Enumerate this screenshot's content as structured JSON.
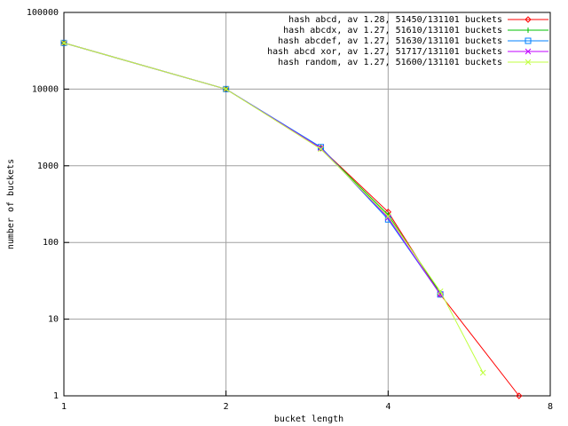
{
  "chart_data": {
    "type": "line",
    "xlabel": "bucket length",
    "ylabel": "number of buckets",
    "xlog": true,
    "ylog": true,
    "grid": true,
    "xlim": [
      1,
      8
    ],
    "ylim": [
      1,
      100000
    ],
    "xticks": [
      1,
      2,
      4,
      8
    ],
    "yticks": [
      1,
      10,
      100,
      1000,
      10000,
      100000
    ],
    "legend": "top-right",
    "series": [
      {
        "name": "hash abcd, av 1.28, 51450/131101 buckets",
        "color": "#ff0000",
        "marker": "diamond",
        "x": [
          1,
          2,
          3,
          4,
          5,
          7
        ],
        "values": [
          40000,
          10000,
          1700,
          250,
          21,
          1
        ]
      },
      {
        "name": "hash abcdx, av 1.27, 51610/131101 buckets",
        "color": "#00c000",
        "marker": "plus",
        "x": [
          1,
          2,
          3,
          4,
          5
        ],
        "values": [
          40000,
          10000,
          1700,
          230,
          22
        ]
      },
      {
        "name": "hash abcdef, av 1.27, 51630/131101 buckets",
        "color": "#0080ff",
        "marker": "square",
        "x": [
          1,
          2,
          3,
          4,
          5
        ],
        "values": [
          40000,
          10000,
          1750,
          200,
          21
        ]
      },
      {
        "name": "hash abcd xor, av 1.27, 51717/131101 buckets",
        "color": "#c000ff",
        "marker": "cross",
        "x": [
          1,
          2,
          3,
          4,
          5
        ],
        "values": [
          40000,
          10000,
          1700,
          210,
          21
        ]
      },
      {
        "name": "hash random, av 1.27, 51600/131101 buckets",
        "color": "#c0ff40",
        "marker": "cross",
        "x": [
          1,
          2,
          3,
          4,
          5,
          6
        ],
        "values": [
          40000,
          10000,
          1650,
          220,
          23,
          2
        ]
      }
    ]
  }
}
